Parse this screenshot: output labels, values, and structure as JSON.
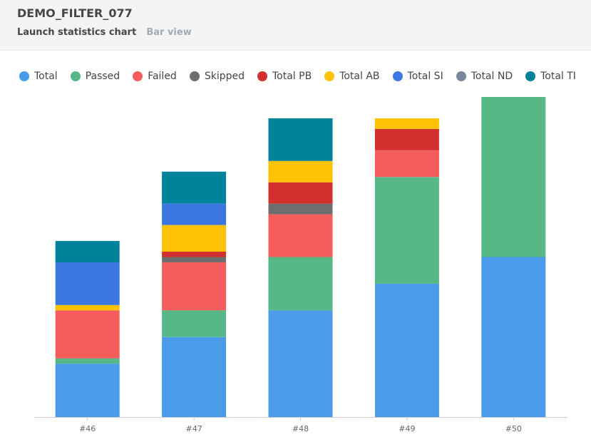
{
  "header": {
    "title": "DEMO_FILTER_077",
    "subtitle": "Launch statistics chart",
    "view": "Bar view"
  },
  "chart_data": {
    "type": "bar",
    "stacked": true,
    "categories": [
      "#46",
      "#47",
      "#48",
      "#49",
      "#50"
    ],
    "series": [
      {
        "name": "Total",
        "color": "#4a9be9",
        "values": [
          5,
          7.5,
          10,
          12.5,
          15
        ]
      },
      {
        "name": "Passed",
        "color": "#55b886",
        "values": [
          0.5,
          2.5,
          5,
          10,
          15
        ]
      },
      {
        "name": "Failed",
        "color": "#f55d5d",
        "values": [
          4.5,
          4.5,
          4,
          2.5,
          0
        ]
      },
      {
        "name": "Skipped",
        "color": "#6e6e6e",
        "values": [
          0,
          0.5,
          1,
          0,
          0
        ]
      },
      {
        "name": "Total PB",
        "color": "#d32f2f",
        "values": [
          0,
          0.5,
          2,
          2,
          0
        ]
      },
      {
        "name": "Total AB",
        "color": "#fdc106",
        "values": [
          0.5,
          2.5,
          2,
          1,
          0
        ]
      },
      {
        "name": "Total SI",
        "color": "#3c78e2",
        "values": [
          4,
          2,
          0,
          0,
          0
        ]
      },
      {
        "name": "Total ND",
        "color": "#7a869a",
        "values": [
          0,
          0,
          0,
          0,
          0
        ]
      },
      {
        "name": "Total TI",
        "color": "#00829b",
        "values": [
          2,
          3,
          4,
          0,
          0
        ]
      }
    ],
    "ylim": [
      0,
      30
    ],
    "grid": false,
    "legend_position": "top"
  }
}
